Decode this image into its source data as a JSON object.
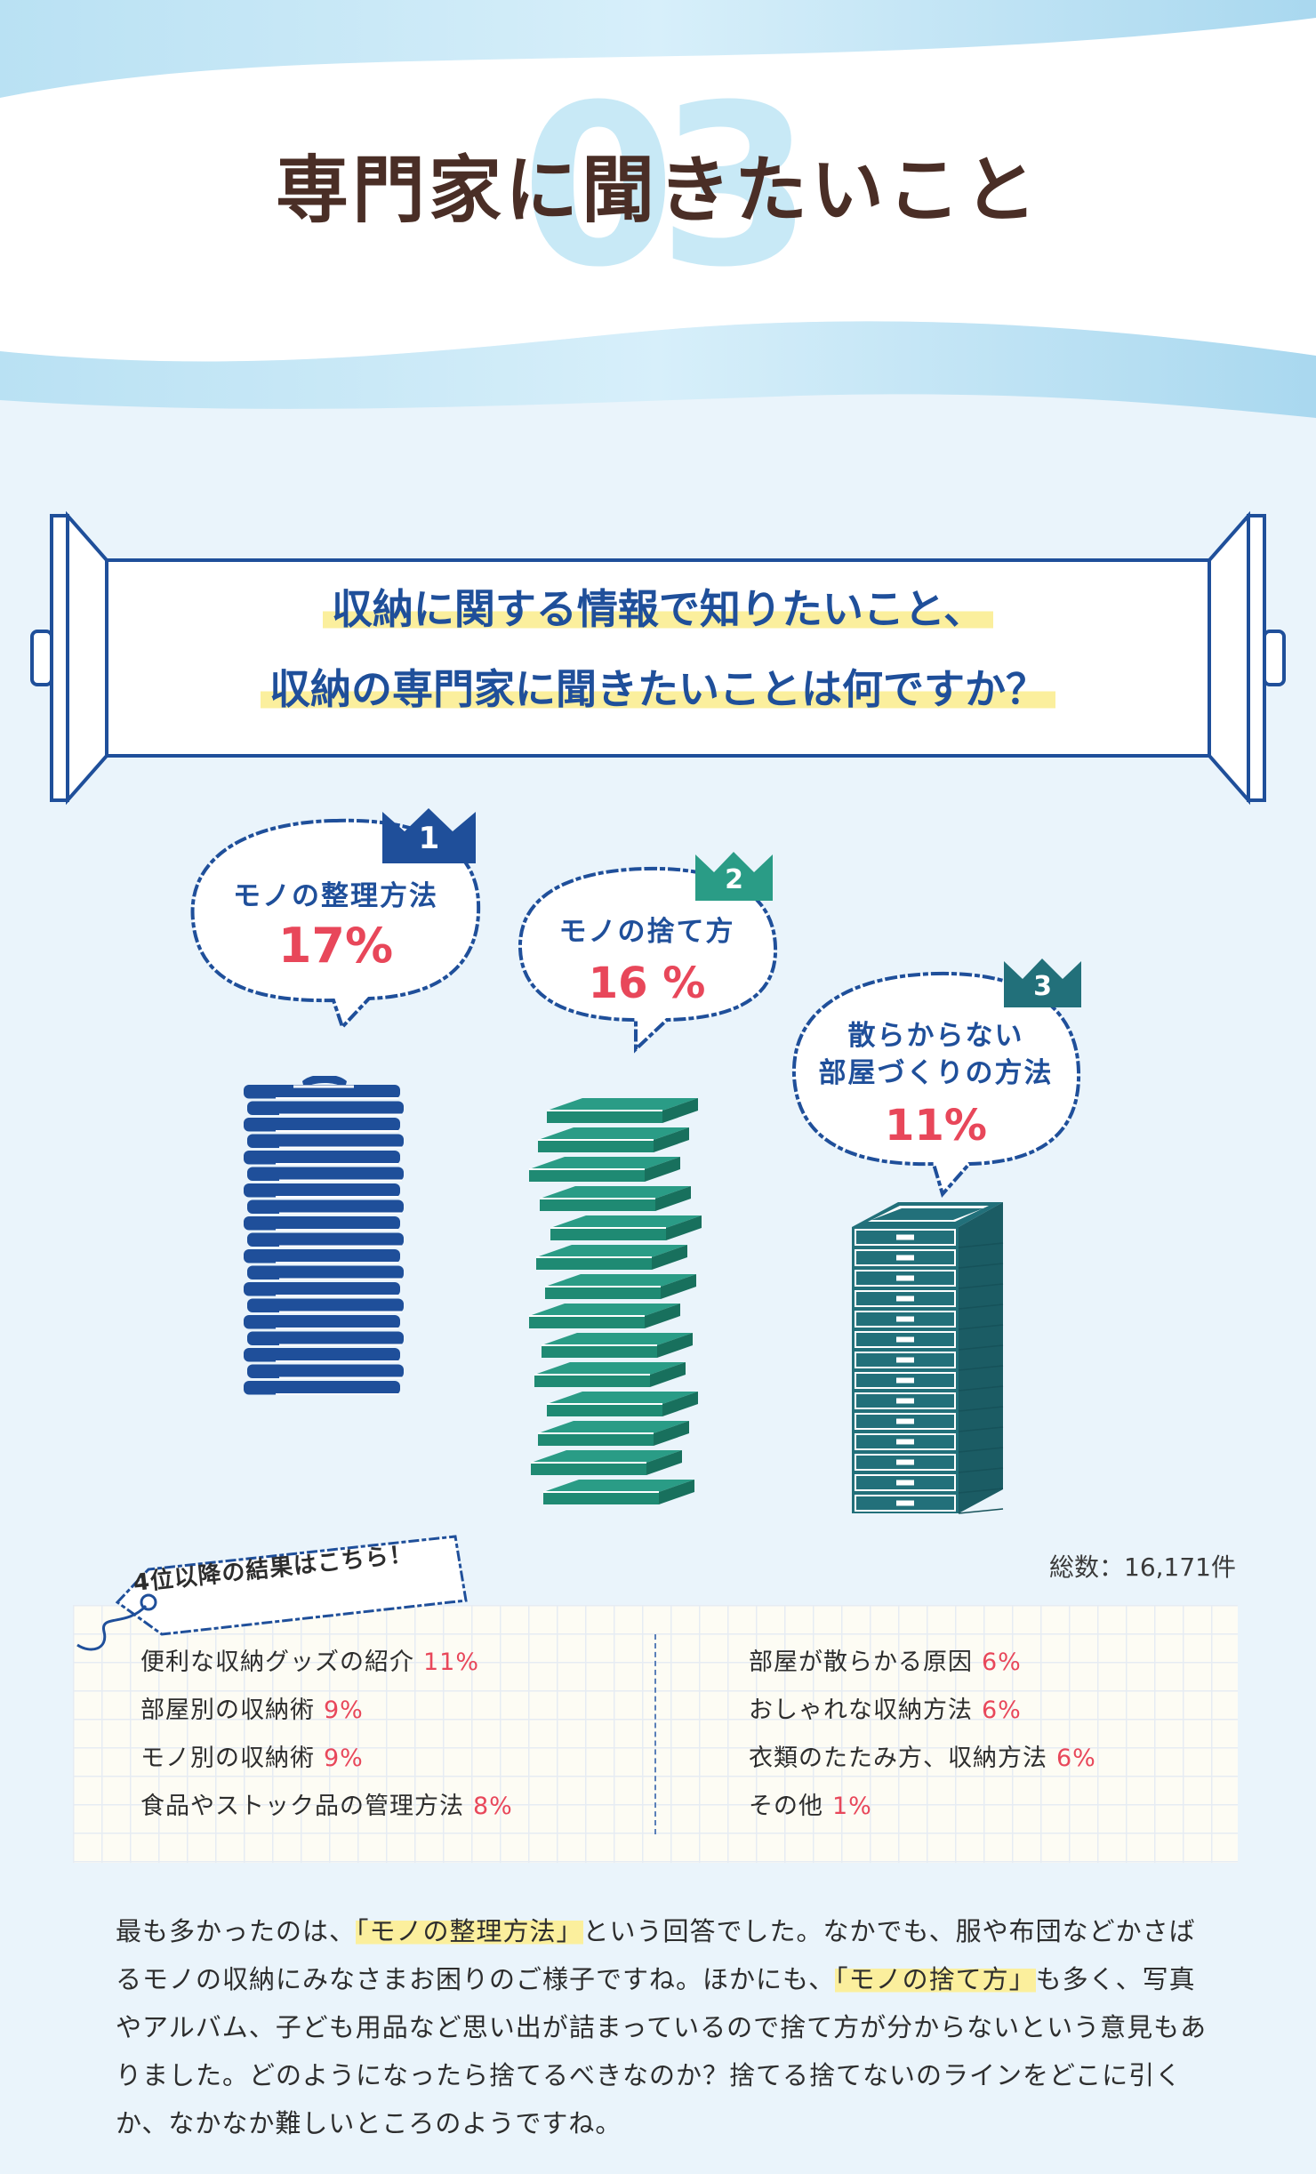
{
  "header": {
    "section_number": "03",
    "title": "専門家に聞きたいこと"
  },
  "question": {
    "line1": "収納に関する情報で知りたいこと、",
    "line2": "収納の専門家に聞きたいことは何ですか？"
  },
  "ranking": [
    {
      "rank": "1",
      "label": "モノの整理方法",
      "percent": "17%",
      "value": 17,
      "icon": "stacked-folded-clothes-icon"
    },
    {
      "rank": "2",
      "label": "モノの捨て方",
      "percent": "16 %",
      "value": 16,
      "icon": "stacked-boxes-icon"
    },
    {
      "rank": "3",
      "label_line1": "散らからない",
      "label_line2": "部屋づくりの方法",
      "percent": "11%",
      "value": 11,
      "icon": "drawer-cabinet-icon"
    }
  ],
  "others": {
    "tag_label": "4位以降の結果はこちら！",
    "total": "総数：16,171件",
    "left": [
      {
        "label": "便利な収納グッズの紹介",
        "percent": "11%"
      },
      {
        "label": "部屋別の収納術",
        "percent": "9%"
      },
      {
        "label": "モノ別の収納術",
        "percent": "9%"
      },
      {
        "label": "食品やストック品の管理方法",
        "percent": "8%"
      }
    ],
    "right": [
      {
        "label": "部屋が散らかる原因",
        "percent": "6%"
      },
      {
        "label": "おしゃれな収納方法",
        "percent": "6%"
      },
      {
        "label": "衣類のたたみ方、収納方法",
        "percent": "6%"
      },
      {
        "label": "その他",
        "percent": "1%"
      }
    ]
  },
  "summary": {
    "p1": "最も多かったのは、",
    "h1": "「モノの整理方法」",
    "p2": "という回答でした。なかでも、服や布団などかさばるモノの収納にみなさまお困りのご様子ですね。ほかにも、",
    "h2": "「モノの捨て方」",
    "p3": "も多く、写真やアルバム、子ども用品など思い出が詰まっているので捨て方が分からないという意見もありました。どのようになったら捨てるべきなのか？捨てる捨てないのラインをどこに引くか、なかなか難しいところのようですね。"
  },
  "colors": {
    "navy": "#1f4f9a",
    "teal_green": "#2a9c86",
    "teal_dark": "#22707a",
    "accent_red": "#e8475a",
    "highlight_yellow": "#fbef9d",
    "title_brown": "#4a2e26"
  }
}
